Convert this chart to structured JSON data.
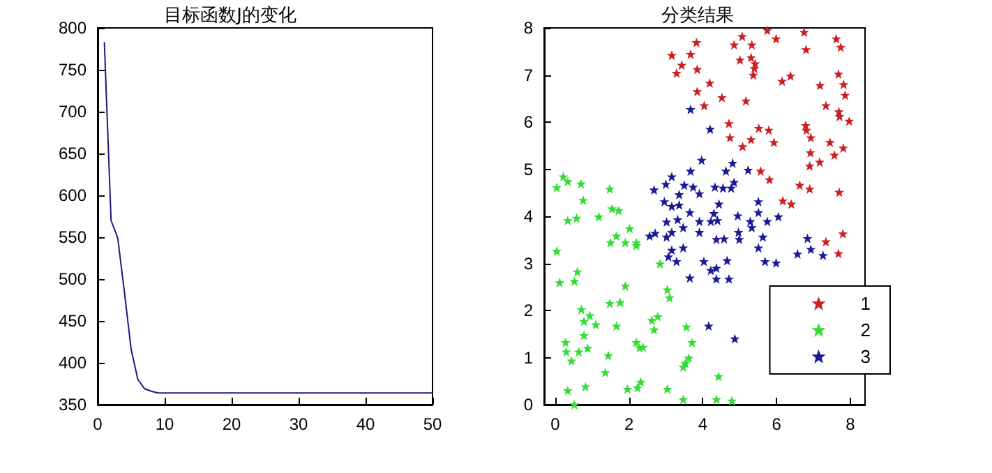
{
  "chart_data": [
    {
      "type": "line",
      "title": "目标函数J的变化",
      "x": [
        1,
        2,
        3,
        4,
        5,
        6,
        7,
        8,
        9,
        10,
        20,
        30,
        40,
        50
      ],
      "values": [
        783,
        570,
        549,
        484,
        416,
        380,
        369,
        366,
        364,
        364,
        364,
        364,
        364,
        364
      ],
      "color": "#1a1a7a",
      "xlim": [
        0,
        50
      ],
      "xticks": [
        0,
        10,
        20,
        30,
        40,
        50
      ],
      "ylim": [
        350,
        800
      ],
      "yticks": [
        350,
        400,
        450,
        500,
        550,
        600,
        650,
        700,
        750,
        800
      ],
      "grid": false
    },
    {
      "type": "scatter",
      "title": "分类结果",
      "marker": "star",
      "legend": "bottom right",
      "grid": false,
      "xlim": [
        -0.3,
        8.4
      ],
      "xticks": [
        0,
        2,
        4,
        6,
        8
      ],
      "ylim": [
        0,
        8
      ],
      "yticks": [
        0,
        1,
        2,
        3,
        4,
        5,
        6,
        7,
        8
      ],
      "series": [
        {
          "name": "1",
          "color": "#cc2020",
          "x": [
            5.75,
            6.75,
            7.62,
            5.07,
            4.85,
            5.33,
            5.99,
            3.83,
            3.16,
            3.67,
            6.8,
            7.74,
            5.01,
            5.31,
            5.42,
            5.4,
            3.43,
            3.29,
            3.85,
            5.37,
            6.38,
            6.15,
            7.68,
            7.82,
            7.18,
            4.19,
            3.85,
            4.52,
            5.17,
            7.86,
            7.34,
            4.04,
            7.69,
            7.71,
            7.97,
            4.71,
            5.52,
            5.79,
            6.79,
            6.81,
            6.93,
            4.74,
            5.31,
            5.93,
            5.08,
            7.45,
            7.81,
            6.92,
            7.57,
            7.17,
            6.9,
            5.57,
            5.81,
            6.63,
            6.9,
            7.7,
            6.17,
            6.4,
            7.34,
            7.8,
            7.68
          ],
          "values": [
            7.95,
            7.91,
            7.77,
            7.82,
            7.64,
            7.64,
            7.77,
            7.69,
            7.42,
            7.44,
            7.54,
            7.59,
            7.32,
            7.37,
            7.24,
            7.14,
            7.21,
            7.04,
            7.12,
            7.0,
            6.98,
            6.87,
            7.02,
            6.8,
            6.78,
            6.83,
            6.65,
            6.52,
            6.45,
            6.57,
            6.35,
            6.35,
            6.22,
            6.12,
            6.02,
            5.97,
            5.87,
            5.83,
            5.93,
            5.83,
            5.67,
            5.67,
            5.63,
            5.57,
            5.48,
            5.57,
            5.45,
            5.35,
            5.3,
            5.15,
            5.07,
            4.96,
            4.78,
            4.66,
            4.58,
            4.51,
            4.33,
            4.26,
            3.46,
            3.63,
            3.21
          ]
        },
        {
          "name": "2",
          "color": "#33dd33",
          "x": [
            0.22,
            0.34,
            0.04,
            0.7,
            1.48,
            0.76,
            1.54,
            1.72,
            0.34,
            0.58,
            1.18,
            1.66,
            1.5,
            1.9,
            2.02,
            2.2,
            2.2,
            0.04,
            0.6,
            0.52,
            0.12,
            1.9,
            2.84,
            3.04,
            3.1,
            1.48,
            1.76,
            0.71,
            0.94,
            0.78,
            1.1,
            1.66,
            2.62,
            2.78,
            2.68,
            3.56,
            0.78,
            0.28,
            0.3,
            0.64,
            0.88,
            2.2,
            2.38,
            2.29,
            3.71,
            1.44,
            0.44,
            3.62,
            3.53,
            3.47,
            1.36,
            4.43,
            2.32,
            2.23,
            0.34,
            0.82,
            1.96,
            3.04,
            3.47,
            4.37,
            4.79,
            0.52
          ],
          "values": [
            4.84,
            4.74,
            4.61,
            4.69,
            4.58,
            4.34,
            4.16,
            4.12,
            3.91,
            3.96,
            3.99,
            3.58,
            3.44,
            3.44,
            3.74,
            3.44,
            3.38,
            3.26,
            2.82,
            2.62,
            2.59,
            2.52,
            2.99,
            2.44,
            2.27,
            2.15,
            2.17,
            2.02,
            1.89,
            1.77,
            1.7,
            1.67,
            1.79,
            1.87,
            1.59,
            1.65,
            1.47,
            1.32,
            1.12,
            1.12,
            1.2,
            1.32,
            1.22,
            1.21,
            1.32,
            1.04,
            0.93,
            0.99,
            0.88,
            0.8,
            0.68,
            0.6,
            0.48,
            0.36,
            0.3,
            0.38,
            0.33,
            0.33,
            0.11,
            0.11,
            0.08,
            0.0
          ]
        },
        {
          "name": "3",
          "color": "#1a1a99",
          "x": [
            3.67,
            4.2,
            3.97,
            4.81,
            3.16,
            3.67,
            4.63,
            5.23,
            2.68,
            3.0,
            3.5,
            3.74,
            4.33,
            4.55,
            4.77,
            4.85,
            3.36,
            3.91,
            2.96,
            3.16,
            3.36,
            4.44,
            5.51,
            3.65,
            4.3,
            4.95,
            5.51,
            6.05,
            3.02,
            3.32,
            3.91,
            4.22,
            4.4,
            5.29,
            5.75,
            5.33,
            2.56,
            2.71,
            3.02,
            3.47,
            3.16,
            3.91,
            4.37,
            4.58,
            4.97,
            4.99,
            5.63,
            5.51,
            3.16,
            3.07,
            3.29,
            3.47,
            4.03,
            4.37,
            4.22,
            4.66,
            5.69,
            5.99,
            3.65,
            4.37,
            4.71,
            6.57,
            6.84,
            6.93,
            7.26,
            4.16,
            4.87
          ],
          "values": [
            6.27,
            5.85,
            5.19,
            5.13,
            4.84,
            4.96,
            4.96,
            4.98,
            4.56,
            4.68,
            4.66,
            4.62,
            4.62,
            4.6,
            4.6,
            4.72,
            4.46,
            4.48,
            4.31,
            4.21,
            4.24,
            4.26,
            4.31,
            4.08,
            4.06,
            4.01,
            4.08,
            3.99,
            3.88,
            3.93,
            3.89,
            3.89,
            3.91,
            3.89,
            3.89,
            3.76,
            3.58,
            3.64,
            3.56,
            3.76,
            3.66,
            3.66,
            3.51,
            3.52,
            3.66,
            3.51,
            3.56,
            3.33,
            3.28,
            3.14,
            3.04,
            3.33,
            3.04,
            2.9,
            2.85,
            3.06,
            3.04,
            3.01,
            2.69,
            2.67,
            2.67,
            3.2,
            3.53,
            3.3,
            3.17,
            1.67,
            1.4
          ]
        }
      ]
    }
  ]
}
